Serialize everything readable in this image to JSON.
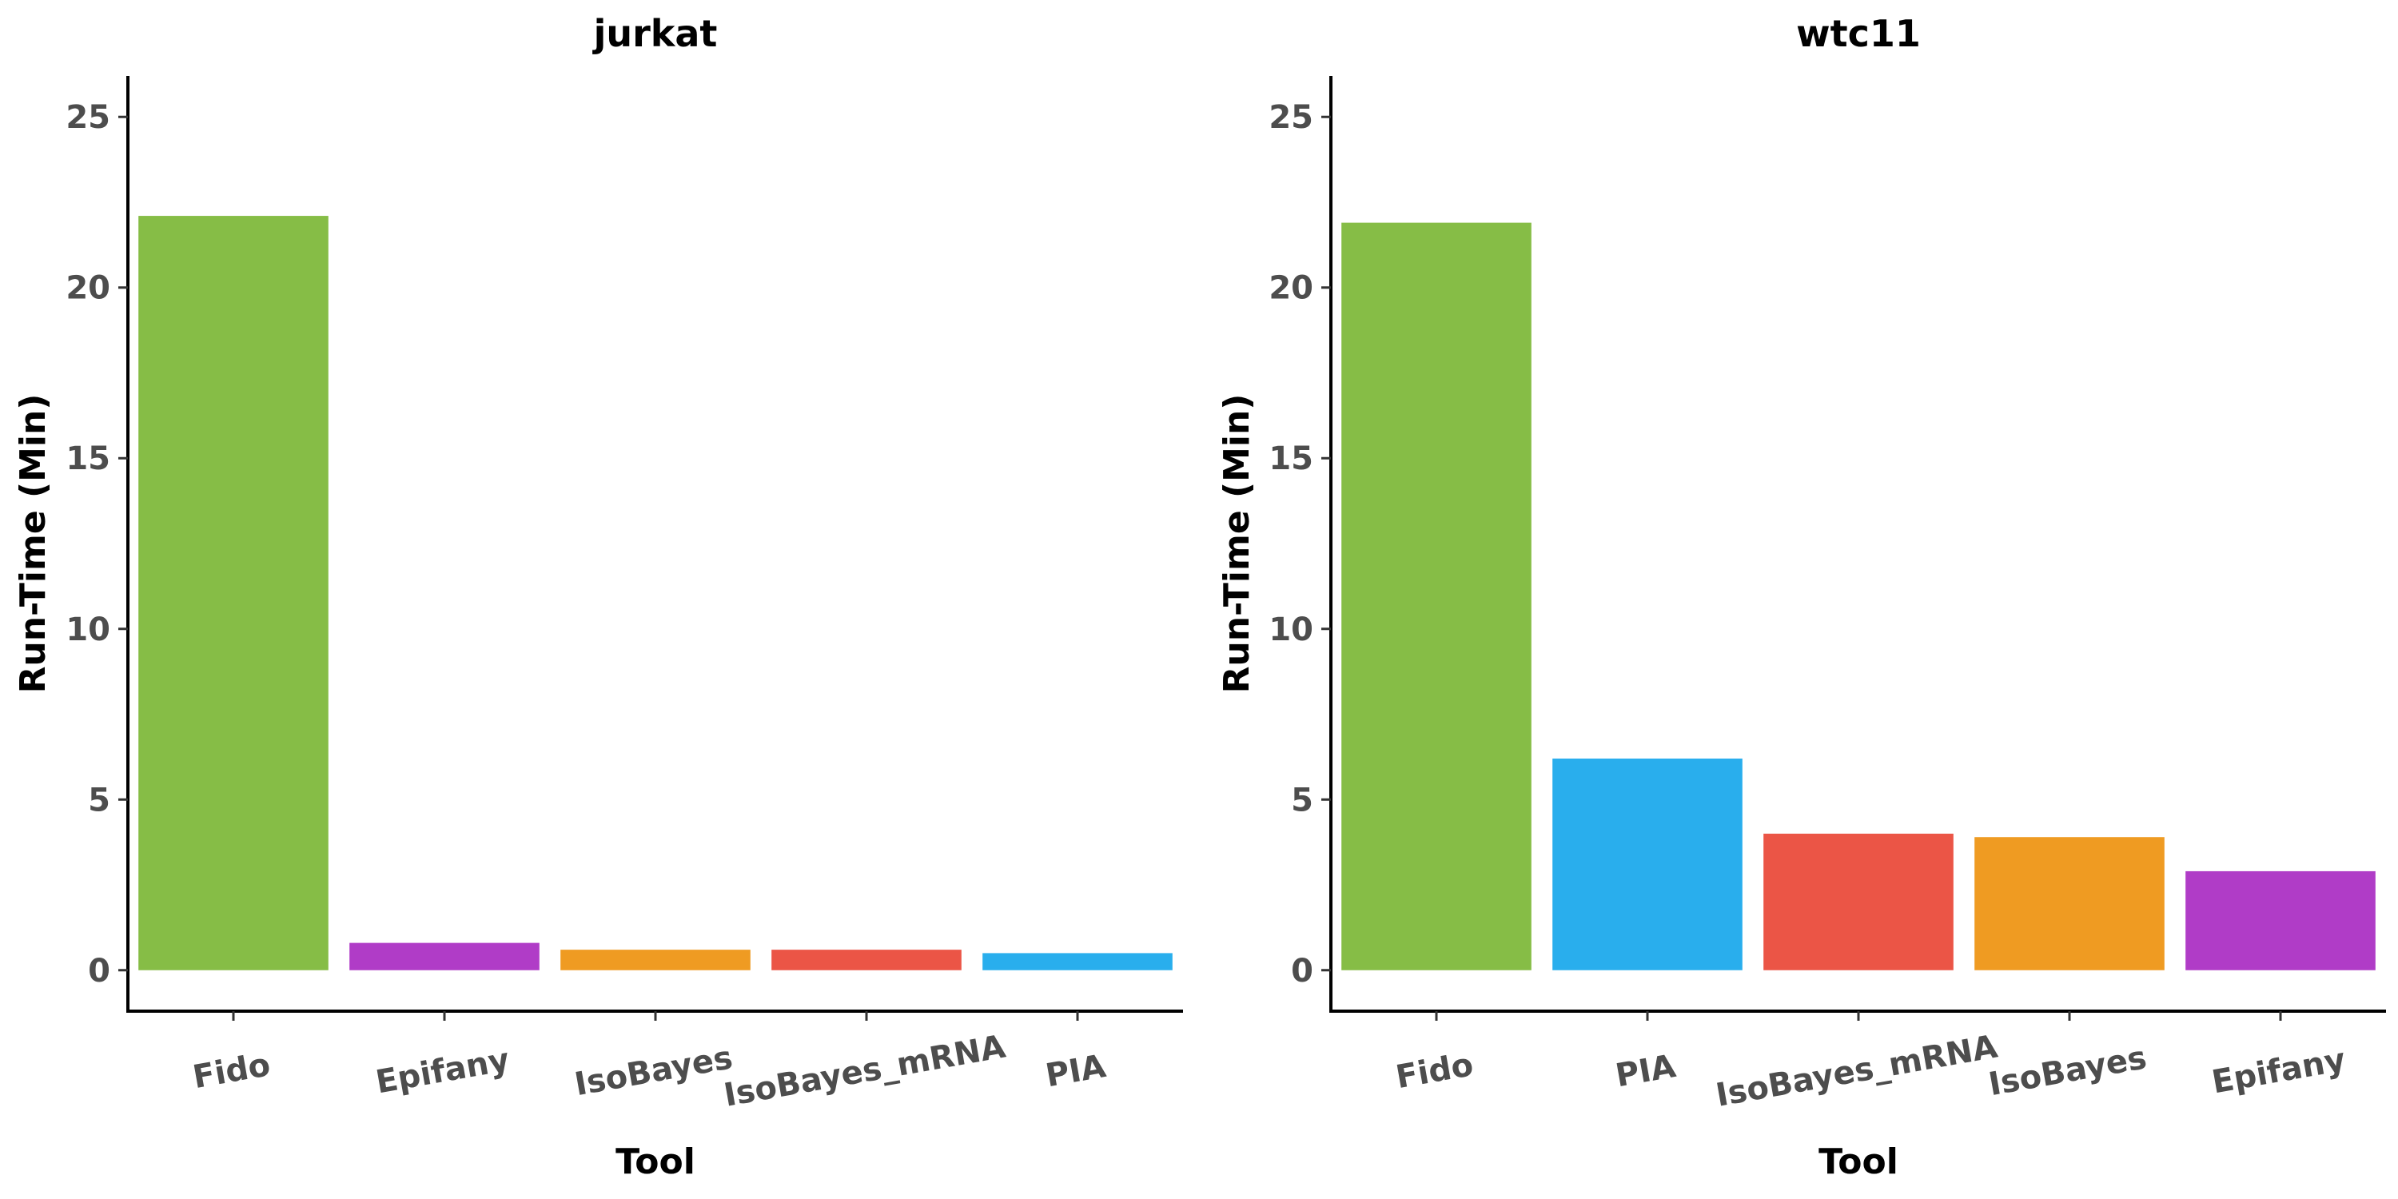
{
  "chart_data": [
    {
      "type": "bar",
      "title": "jurkat",
      "xlabel": "Tool",
      "ylabel": "Run-Time (Min)",
      "ylim": [
        -1.2,
        26.2
      ],
      "yticks": [
        0,
        5,
        10,
        15,
        20,
        25
      ],
      "categories": [
        "Fido",
        "Epifany",
        "IsoBayes",
        "IsoBayes_mRNA",
        "PIA"
      ],
      "values": [
        22.1,
        0.8,
        0.6,
        0.6,
        0.5
      ],
      "colors": [
        "#86bd46",
        "#b03cc7",
        "#ef9b22",
        "#eb5546",
        "#29aeed"
      ],
      "grid": false,
      "legend": "none"
    },
    {
      "type": "bar",
      "title": "wtc11",
      "xlabel": "Tool",
      "ylabel": "Run-Time (Min)",
      "ylim": [
        -1.2,
        26.2
      ],
      "yticks": [
        0,
        5,
        10,
        15,
        20,
        25
      ],
      "categories": [
        "Fido",
        "PIA",
        "IsoBayes_mRNA",
        "IsoBayes",
        "Epifany"
      ],
      "values": [
        21.9,
        6.2,
        4.0,
        3.9,
        2.9
      ],
      "colors": [
        "#86bd46",
        "#29aeed",
        "#eb5546",
        "#ef9b22",
        "#b03cc7"
      ],
      "grid": false,
      "legend": "none"
    }
  ]
}
